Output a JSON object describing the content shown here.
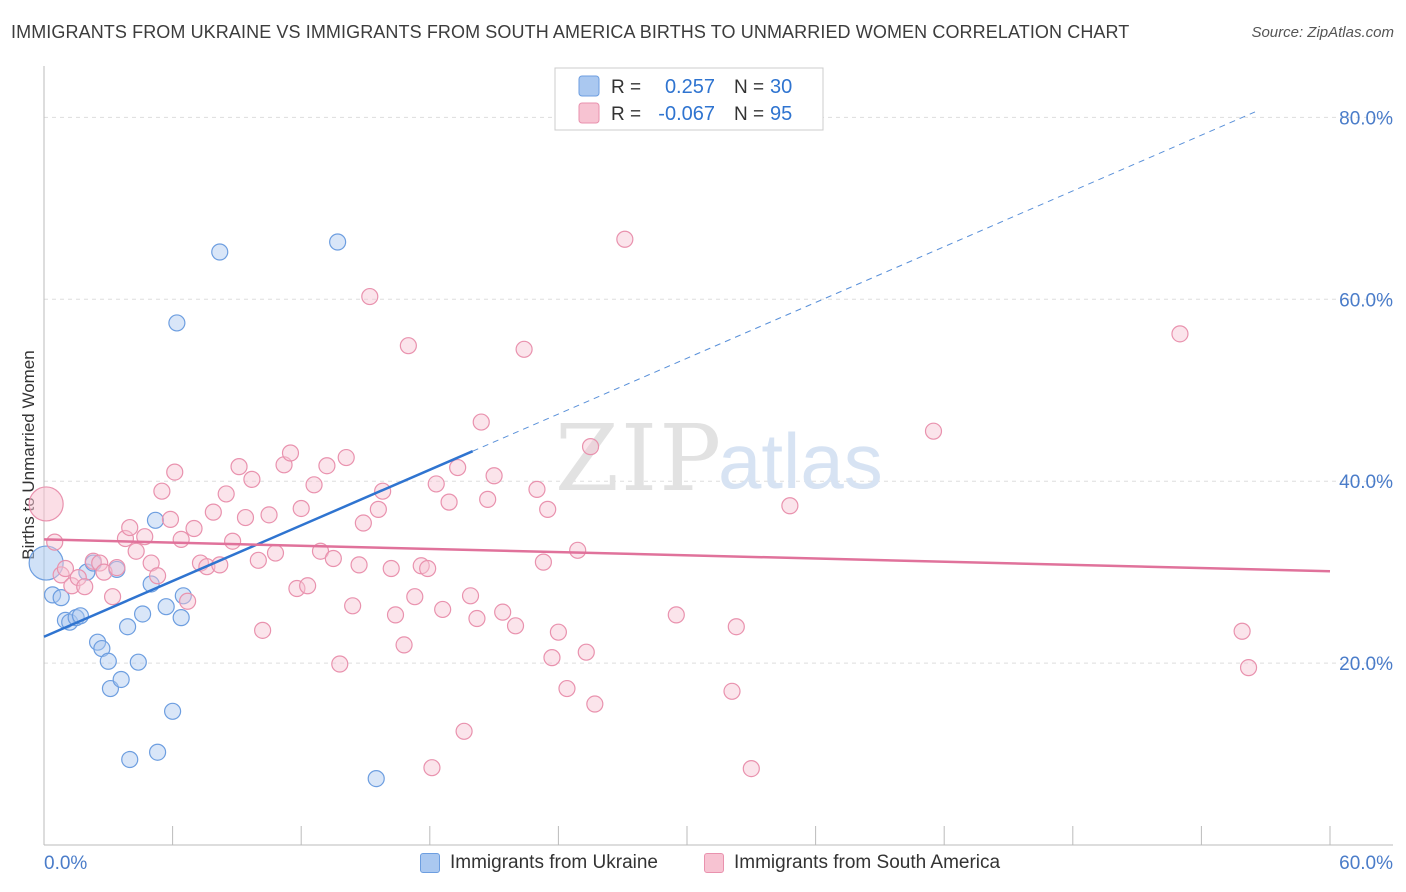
{
  "title": "IMMIGRANTS FROM UKRAINE VS IMMIGRANTS FROM SOUTH AMERICA BIRTHS TO UNMARRIED WOMEN CORRELATION CHART",
  "source": "Source: ZipAtlas.com",
  "watermark": {
    "zip": "ZIP",
    "atlas": "atlas"
  },
  "legend_box": {
    "rows": [
      {
        "r_label": "R =",
        "r_value": "0.257",
        "n_label": "N =",
        "n_value": "30"
      },
      {
        "r_label": "R =",
        "r_value": "-0.067",
        "n_label": "N =",
        "n_value": "95"
      }
    ]
  },
  "colors": {
    "ukraine_fill": "#aac8f0",
    "ukraine_stroke": "#6d9ee0",
    "ukraine_line": "#2f74d0",
    "sa_fill": "#f7c3d2",
    "sa_stroke": "#e992ae",
    "sa_line": "#e0729b",
    "grid": "#dddddd",
    "axis_text": "#4a7cc9"
  },
  "chart_data": {
    "type": "scatter",
    "title": "IMMIGRANTS FROM UKRAINE VS IMMIGRANTS FROM SOUTH AMERICA BIRTHS TO UNMARRIED WOMEN CORRELATION CHART",
    "xlabel": "",
    "ylabel": "Births to Unmarried Women",
    "xlim": [
      0,
      60
    ],
    "ylim": [
      0,
      84
    ],
    "x_tick_labels": [
      "0.0%",
      "60.0%"
    ],
    "y_ticks": [
      20,
      40,
      60,
      80
    ],
    "y_tick_labels": [
      "20.0%",
      "40.0%",
      "60.0%",
      "80.0%"
    ],
    "legend_position": "bottom",
    "series": [
      {
        "name": "Immigrants from Ukraine",
        "color": "#aac8f0",
        "points": [
          {
            "x": 0.1,
            "y": 31.0,
            "big": true
          },
          {
            "x": 0.4,
            "y": 27.5
          },
          {
            "x": 0.8,
            "y": 27.2
          },
          {
            "x": 1.0,
            "y": 24.7
          },
          {
            "x": 1.2,
            "y": 24.5
          },
          {
            "x": 1.5,
            "y": 25.0
          },
          {
            "x": 1.7,
            "y": 25.2
          },
          {
            "x": 2.0,
            "y": 30.0
          },
          {
            "x": 2.3,
            "y": 31.0
          },
          {
            "x": 2.5,
            "y": 22.3
          },
          {
            "x": 2.7,
            "y": 21.6
          },
          {
            "x": 3.0,
            "y": 20.2
          },
          {
            "x": 3.1,
            "y": 17.2
          },
          {
            "x": 3.4,
            "y": 30.3
          },
          {
            "x": 3.6,
            "y": 18.2
          },
          {
            "x": 3.9,
            "y": 24.0
          },
          {
            "x": 4.0,
            "y": 9.4
          },
          {
            "x": 4.4,
            "y": 20.1
          },
          {
            "x": 4.6,
            "y": 25.4
          },
          {
            "x": 5.0,
            "y": 28.7
          },
          {
            "x": 5.2,
            "y": 35.7
          },
          {
            "x": 5.3,
            "y": 10.2
          },
          {
            "x": 5.7,
            "y": 26.2
          },
          {
            "x": 6.0,
            "y": 14.7
          },
          {
            "x": 6.2,
            "y": 57.4
          },
          {
            "x": 6.4,
            "y": 25.0
          },
          {
            "x": 6.5,
            "y": 27.4
          },
          {
            "x": 8.2,
            "y": 65.2
          },
          {
            "x": 13.7,
            "y": 66.3
          },
          {
            "x": 15.5,
            "y": 7.3
          }
        ],
        "trend": {
          "x_start": 0,
          "y_start": 22.9,
          "x_solid_end": 20,
          "y_solid_end": 43.3,
          "x_dash_end": 56.5,
          "y_dash_end": 80.6
        }
      },
      {
        "name": "Immigrants from South America",
        "color": "#f7c3d2",
        "points": [
          {
            "x": 0.1,
            "y": 37.5,
            "big": true
          },
          {
            "x": 0.5,
            "y": 33.3
          },
          {
            "x": 0.8,
            "y": 29.7
          },
          {
            "x": 1.0,
            "y": 30.4
          },
          {
            "x": 1.3,
            "y": 28.5
          },
          {
            "x": 1.6,
            "y": 29.4
          },
          {
            "x": 1.9,
            "y": 28.4
          },
          {
            "x": 2.3,
            "y": 31.2
          },
          {
            "x": 2.6,
            "y": 31.0
          },
          {
            "x": 2.8,
            "y": 30.0
          },
          {
            "x": 3.2,
            "y": 27.3
          },
          {
            "x": 3.4,
            "y": 30.5
          },
          {
            "x": 3.8,
            "y": 33.7
          },
          {
            "x": 4.0,
            "y": 34.9
          },
          {
            "x": 4.3,
            "y": 32.3
          },
          {
            "x": 4.7,
            "y": 33.9
          },
          {
            "x": 5.0,
            "y": 31.0
          },
          {
            "x": 5.3,
            "y": 29.6
          },
          {
            "x": 5.5,
            "y": 38.9
          },
          {
            "x": 5.9,
            "y": 35.8
          },
          {
            "x": 6.1,
            "y": 41.0
          },
          {
            "x": 6.4,
            "y": 33.6
          },
          {
            "x": 6.7,
            "y": 26.8
          },
          {
            "x": 7.0,
            "y": 34.8
          },
          {
            "x": 7.3,
            "y": 31.0
          },
          {
            "x": 7.6,
            "y": 30.6
          },
          {
            "x": 7.9,
            "y": 36.6
          },
          {
            "x": 8.2,
            "y": 30.8
          },
          {
            "x": 8.5,
            "y": 38.6
          },
          {
            "x": 8.8,
            "y": 33.4
          },
          {
            "x": 9.1,
            "y": 41.6
          },
          {
            "x": 9.4,
            "y": 36.0
          },
          {
            "x": 9.7,
            "y": 40.2
          },
          {
            "x": 10.0,
            "y": 31.3
          },
          {
            "x": 10.2,
            "y": 23.6
          },
          {
            "x": 10.5,
            "y": 36.3
          },
          {
            "x": 10.8,
            "y": 32.1
          },
          {
            "x": 11.2,
            "y": 41.8
          },
          {
            "x": 11.5,
            "y": 43.1
          },
          {
            "x": 11.8,
            "y": 28.2
          },
          {
            "x": 12.0,
            "y": 37.0
          },
          {
            "x": 12.3,
            "y": 28.5
          },
          {
            "x": 12.6,
            "y": 39.6
          },
          {
            "x": 12.9,
            "y": 32.3
          },
          {
            "x": 13.2,
            "y": 41.7
          },
          {
            "x": 13.5,
            "y": 31.5
          },
          {
            "x": 13.8,
            "y": 19.9
          },
          {
            "x": 14.1,
            "y": 42.6
          },
          {
            "x": 14.4,
            "y": 26.3
          },
          {
            "x": 14.7,
            "y": 30.8
          },
          {
            "x": 14.9,
            "y": 35.4
          },
          {
            "x": 15.2,
            "y": 60.3
          },
          {
            "x": 15.6,
            "y": 36.9
          },
          {
            "x": 15.8,
            "y": 38.9
          },
          {
            "x": 16.2,
            "y": 30.4
          },
          {
            "x": 16.4,
            "y": 25.3
          },
          {
            "x": 16.8,
            "y": 22.0
          },
          {
            "x": 17.0,
            "y": 54.9
          },
          {
            "x": 17.3,
            "y": 27.3
          },
          {
            "x": 17.6,
            "y": 30.7
          },
          {
            "x": 17.9,
            "y": 30.4
          },
          {
            "x": 18.1,
            "y": 8.5
          },
          {
            "x": 18.3,
            "y": 39.7
          },
          {
            "x": 18.6,
            "y": 25.9
          },
          {
            "x": 18.9,
            "y": 37.7
          },
          {
            "x": 19.3,
            "y": 41.5
          },
          {
            "x": 19.6,
            "y": 12.5
          },
          {
            "x": 19.9,
            "y": 27.4
          },
          {
            "x": 20.2,
            "y": 24.9
          },
          {
            "x": 20.4,
            "y": 46.5
          },
          {
            "x": 20.7,
            "y": 38.0
          },
          {
            "x": 21.0,
            "y": 40.6
          },
          {
            "x": 21.4,
            "y": 25.6
          },
          {
            "x": 22.0,
            "y": 24.1
          },
          {
            "x": 22.4,
            "y": 54.5
          },
          {
            "x": 23.0,
            "y": 39.1
          },
          {
            "x": 23.3,
            "y": 31.1
          },
          {
            "x": 23.5,
            "y": 36.9
          },
          {
            "x": 23.7,
            "y": 20.6
          },
          {
            "x": 24.0,
            "y": 23.4
          },
          {
            "x": 24.4,
            "y": 17.2
          },
          {
            "x": 24.9,
            "y": 32.4
          },
          {
            "x": 25.3,
            "y": 21.2
          },
          {
            "x": 25.5,
            "y": 43.8
          },
          {
            "x": 25.7,
            "y": 15.5
          },
          {
            "x": 27.1,
            "y": 66.6
          },
          {
            "x": 29.5,
            "y": 25.3
          },
          {
            "x": 32.1,
            "y": 16.9
          },
          {
            "x": 32.3,
            "y": 24.0
          },
          {
            "x": 33.0,
            "y": 8.4
          },
          {
            "x": 34.8,
            "y": 37.3
          },
          {
            "x": 41.5,
            "y": 45.5
          },
          {
            "x": 53.0,
            "y": 56.2
          },
          {
            "x": 55.9,
            "y": 23.5
          },
          {
            "x": 56.2,
            "y": 19.5
          }
        ],
        "trend": {
          "x_start": 0,
          "y_start": 33.6,
          "x_end": 60,
          "y_end": 30.1
        }
      }
    ]
  }
}
